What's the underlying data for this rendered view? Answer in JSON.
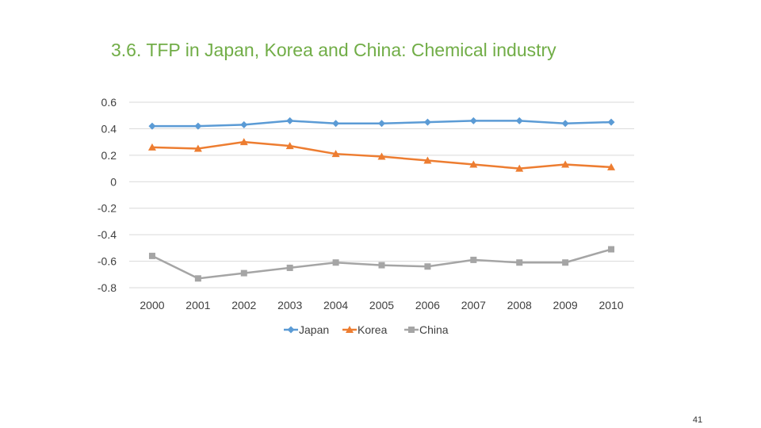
{
  "slide": {
    "title": "3.6. TFP in Japan, Korea and China: Chemical industry",
    "page_number": "41"
  },
  "chart_data": {
    "type": "line",
    "title": "",
    "xlabel": "",
    "ylabel": "",
    "categories": [
      "2000",
      "2001",
      "2002",
      "2003",
      "2004",
      "2005",
      "2006",
      "2007",
      "2008",
      "2009",
      "2010"
    ],
    "ylim": [
      -0.8,
      0.6
    ],
    "yticks": [
      0.6,
      0.4,
      0.2,
      0,
      -0.2,
      -0.4,
      -0.6,
      -0.8
    ],
    "ytick_labels": [
      "0.6",
      "0.4",
      "0.2",
      "0",
      "-0.2",
      "-0.4",
      "-0.6",
      "-0.8"
    ],
    "grid": true,
    "legend_position": "bottom",
    "series": [
      {
        "name": "Japan",
        "color": "#5b9bd5",
        "marker": "diamond",
        "values": [
          0.42,
          0.42,
          0.43,
          0.46,
          0.44,
          0.44,
          0.45,
          0.46,
          0.46,
          0.44,
          0.45
        ]
      },
      {
        "name": "Korea",
        "color": "#ed7d31",
        "marker": "triangle",
        "values": [
          0.26,
          0.25,
          0.3,
          0.27,
          0.21,
          0.19,
          0.16,
          0.13,
          0.1,
          0.13,
          0.11
        ]
      },
      {
        "name": "China",
        "color": "#a5a5a5",
        "marker": "square",
        "values": [
          -0.56,
          -0.73,
          -0.69,
          -0.65,
          -0.61,
          -0.63,
          -0.64,
          -0.59,
          -0.61,
          -0.61,
          -0.51
        ]
      }
    ]
  }
}
